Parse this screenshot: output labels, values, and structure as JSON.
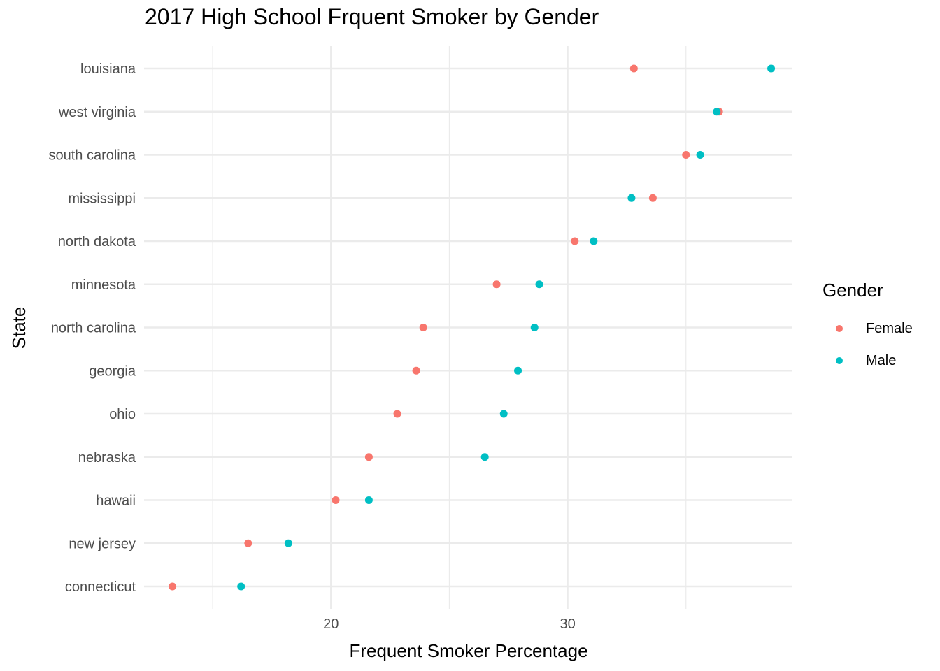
{
  "chart_data": {
    "type": "scatter",
    "title": "2017 High School Frquent Smoker by Gender",
    "xlabel": "Frequent Smoker Percentage",
    "ylabel": "State",
    "xlim": [
      12.1,
      39.5
    ],
    "x_ticks": [
      20,
      30
    ],
    "x_minor_ticks": [
      15,
      25,
      35
    ],
    "grid": true,
    "legend_title": "Gender",
    "legend_position": "right",
    "categories": [
      "louisiana",
      "west virginia",
      "south carolina",
      "mississippi",
      "north dakota",
      "minnesota",
      "north carolina",
      "georgia",
      "ohio",
      "nebraska",
      "hawaii",
      "new jersey",
      "connecticut"
    ],
    "series": [
      {
        "name": "Female",
        "color": "#F8766D",
        "values": [
          32.8,
          36.4,
          35.0,
          33.6,
          30.3,
          27.0,
          23.9,
          23.6,
          22.8,
          21.6,
          20.2,
          16.5,
          13.3
        ]
      },
      {
        "name": "Male",
        "color": "#00BFC4",
        "values": [
          38.6,
          36.3,
          35.6,
          32.7,
          31.1,
          28.8,
          28.6,
          27.9,
          27.3,
          26.5,
          21.6,
          18.2,
          16.2
        ]
      }
    ]
  }
}
